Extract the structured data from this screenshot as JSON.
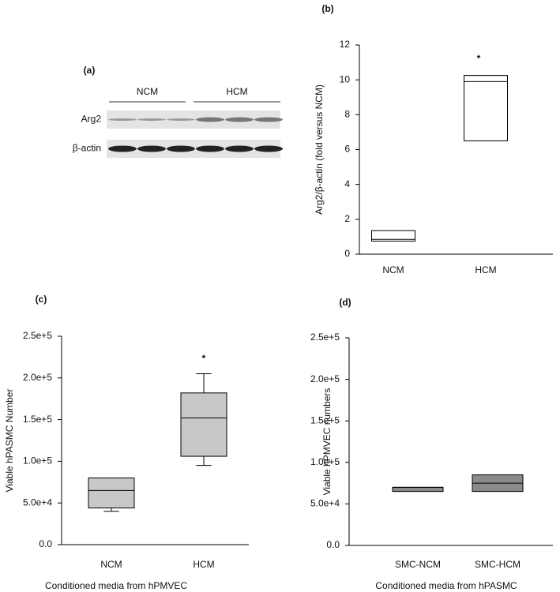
{
  "chart_data": [
    {
      "type": "blot",
      "title": "(a)",
      "groups": [
        "NCM",
        "HCM"
      ],
      "rows": [
        "Arg2",
        "β-actin"
      ]
    },
    {
      "type": "box",
      "title": "(b)",
      "ylabel": "Arg2/β-actin (fold versus NCM)",
      "annotation": "*",
      "color": "#ffffff",
      "categories": [
        "NCM",
        "HCM"
      ],
      "whislo": [
        null,
        null
      ],
      "q1": [
        0.75,
        6.5
      ],
      "median": [
        0.85,
        9.9
      ],
      "q3": [
        1.35,
        10.25
      ],
      "whishi": [
        null,
        null
      ],
      "ylim": [
        0,
        12
      ],
      "yticks": [
        0,
        2,
        4,
        6,
        8,
        10,
        12
      ]
    },
    {
      "type": "box",
      "title": "(c)",
      "ylabel": "Viable hPASMC Number",
      "xlabel": "Conditioned media from hPMVEC",
      "annotation": "*",
      "color": "#c8c8c8",
      "categories": [
        "NCM",
        "HCM"
      ],
      "whislo": [
        40000,
        95000
      ],
      "q1": [
        44000,
        106000
      ],
      "median": [
        65000,
        152000
      ],
      "q3": [
        80000,
        182000
      ],
      "whishi": [
        null,
        205000
      ],
      "ylim": [
        0,
        250000
      ],
      "yticks": [
        {
          "value": 0,
          "label": "0.0"
        },
        {
          "value": 50000,
          "label": "5.0e+4"
        },
        {
          "value": 100000,
          "label": "1.0e+5"
        },
        {
          "value": 150000,
          "label": "1.5e+5"
        },
        {
          "value": 200000,
          "label": "2.0e+5"
        },
        {
          "value": 250000,
          "label": "2.5e+5"
        }
      ]
    },
    {
      "type": "box",
      "title": "(d)",
      "ylabel": "Viable hPMVEC numbers",
      "xlabel": "Conditioned media from hPASMC",
      "color": "#8a8a8a",
      "categories": [
        "SMC-NCM",
        "SMC-HCM"
      ],
      "whislo": [
        null,
        null
      ],
      "q1": [
        65000,
        65000
      ],
      "median": [
        70000,
        75000
      ],
      "q3": [
        70000,
        85000
      ],
      "whishi": [
        null,
        null
      ],
      "ylim": [
        0,
        250000
      ],
      "yticks": [
        {
          "value": 0,
          "label": "0.0"
        },
        {
          "value": 50000,
          "label": "5.0e+4"
        },
        {
          "value": 100000,
          "label": "1.0e+5"
        },
        {
          "value": 150000,
          "label": "1.5e+5"
        },
        {
          "value": 200000,
          "label": "2.0e+5"
        },
        {
          "value": 250000,
          "label": "2.5e+5"
        }
      ]
    }
  ]
}
